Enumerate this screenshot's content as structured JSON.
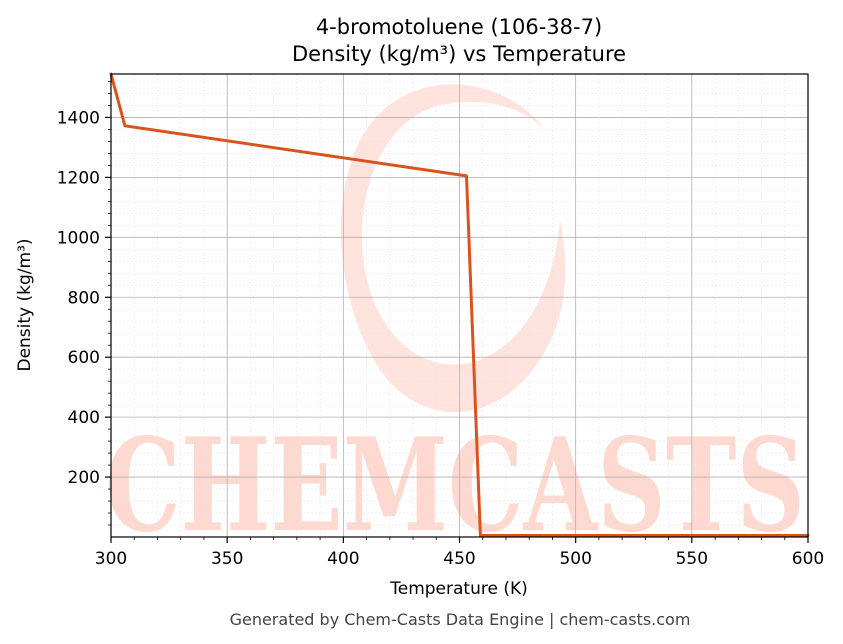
{
  "title_line1": "4-bromotoluene (106-38-7)",
  "title_line2": "Density (kg/m³) vs Temperature",
  "footer": "Generated by Chem-Casts Data Engine | chem-casts.com",
  "watermark": "CHEMCASTS",
  "colors": {
    "series": "#d9531e",
    "grid": "#b0b0b0",
    "minor_grid": "#e6e6e6",
    "watermark": "#ffd9d0"
  },
  "chart_data": {
    "type": "line",
    "xlabel": "Temperature (K)",
    "ylabel": "Density (kg/m³)",
    "xlim": [
      300,
      600
    ],
    "ylim": [
      0,
      1545
    ],
    "xticks": [
      300,
      350,
      400,
      450,
      500,
      550,
      600
    ],
    "yticks": [
      200,
      400,
      600,
      800,
      1000,
      1200,
      1400
    ],
    "grid": true,
    "series": [
      {
        "x": [
          300,
          306,
          453,
          459,
          600
        ],
        "y": [
          1545,
          1372,
          1205,
          5,
          5
        ]
      }
    ]
  }
}
